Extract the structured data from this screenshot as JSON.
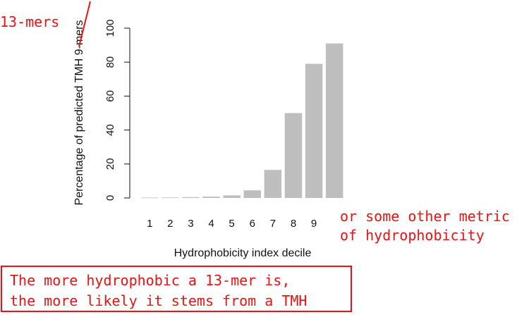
{
  "chart_data": {
    "type": "bar",
    "categories": [
      "1",
      "2",
      "3",
      "4",
      "5",
      "6",
      "7",
      "8",
      "9",
      ""
    ],
    "values": [
      0.2,
      0.3,
      0.5,
      0.8,
      1.5,
      4.5,
      16.5,
      50,
      79,
      91
    ],
    "xlabel": "Hydrophobicity index decile",
    "ylabel": "Percentage of predicted TMH 9-mers",
    "ylim": [
      0,
      100
    ],
    "yticks": [
      0,
      20,
      40,
      60,
      80,
      100
    ],
    "bar_color": "#bebebe",
    "grid": false
  },
  "annotations": {
    "correction_text": "13-mers",
    "side_note_line1": "or some other metric",
    "side_note_line2": "of hydrophobicity",
    "box_line1": "The more hydrophobic a 13-mer is,",
    "box_line2": "the more likely it stems from a TMH",
    "annotation_color": "#ee1111"
  }
}
